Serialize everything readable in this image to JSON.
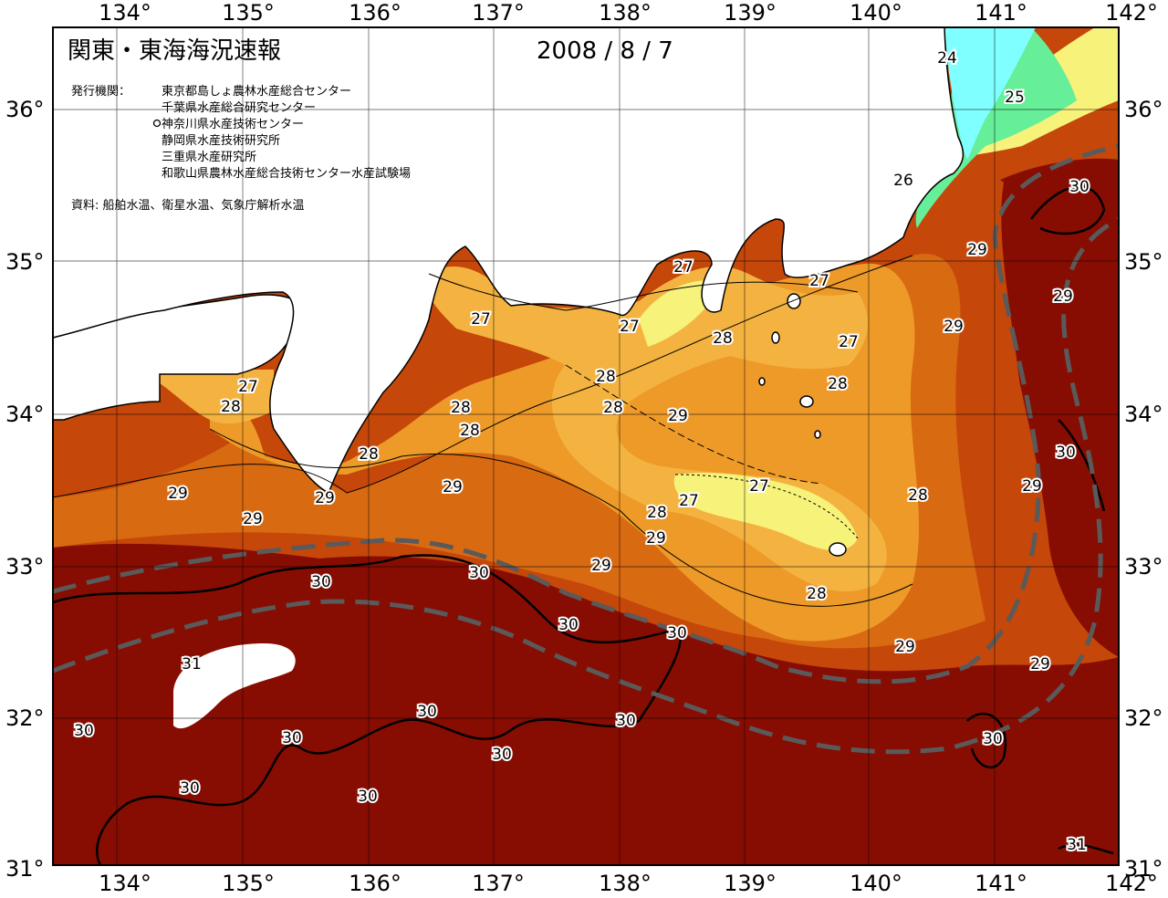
{
  "header": {
    "title": "関東・東海海況速報",
    "date": "2008 / 8 / 7",
    "issuer_label": "発行機関：",
    "issuers": [
      "東京都島しょ農林水産総合センター",
      "千葉県水産総合研究センター",
      "神奈川県水産技術センター",
      "静岡県水産技術研究所",
      "三重県水産研究所",
      "和歌山県農林水産総合技術センター水産試験場"
    ],
    "source": "資料: 船舶水温、衛星水温、気象庁解析水温"
  },
  "axes": {
    "lon_ticks": [
      "134°",
      "135°",
      "136°",
      "137°",
      "138°",
      "139°",
      "140°",
      "141°",
      "142°"
    ],
    "lat_ticks": [
      "36°",
      "35°",
      "34°",
      "33°",
      "32°",
      "31°"
    ]
  },
  "colors": {
    "t24": "#7fffff",
    "t25": "#66ee99",
    "t26": "#f6f27a",
    "t27": "#f4b340",
    "t28": "#ee9a28",
    "t29": "#d86a12",
    "t30": "#c5470a",
    "t31": "#870d02",
    "land": "#ffffff",
    "kuroshio_axis": "#5a5a5a"
  },
  "contour_labels": [
    {
      "text": "24"
    },
    {
      "text": "25"
    },
    {
      "text": "26"
    },
    {
      "text": "27"
    },
    {
      "text": "27"
    },
    {
      "text": "27"
    },
    {
      "text": "27"
    },
    {
      "text": "27"
    },
    {
      "text": "27"
    },
    {
      "text": "27"
    },
    {
      "text": "27"
    },
    {
      "text": "28"
    },
    {
      "text": "28"
    },
    {
      "text": "28"
    },
    {
      "text": "28"
    },
    {
      "text": "28"
    },
    {
      "text": "28"
    },
    {
      "text": "28"
    },
    {
      "text": "28"
    },
    {
      "text": "28"
    },
    {
      "text": "28"
    },
    {
      "text": "28"
    },
    {
      "text": "29"
    },
    {
      "text": "29"
    },
    {
      "text": "29"
    },
    {
      "text": "29"
    },
    {
      "text": "29"
    },
    {
      "text": "29"
    },
    {
      "text": "29"
    },
    {
      "text": "29"
    },
    {
      "text": "29"
    },
    {
      "text": "29"
    },
    {
      "text": "29"
    },
    {
      "text": "29"
    },
    {
      "text": "29"
    },
    {
      "text": "30"
    },
    {
      "text": "30"
    },
    {
      "text": "30"
    },
    {
      "text": "30"
    },
    {
      "text": "30"
    },
    {
      "text": "30"
    },
    {
      "text": "30"
    },
    {
      "text": "30"
    },
    {
      "text": "30"
    },
    {
      "text": "30"
    },
    {
      "text": "30"
    },
    {
      "text": "30"
    },
    {
      "text": "30"
    },
    {
      "text": "30"
    },
    {
      "text": "31"
    },
    {
      "text": "31"
    }
  ]
}
